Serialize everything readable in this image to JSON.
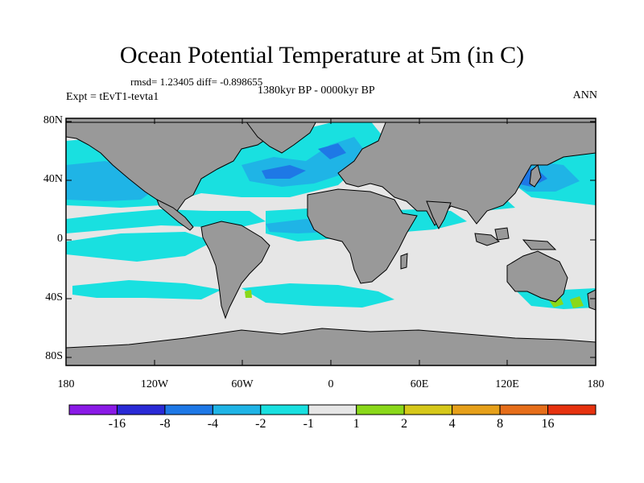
{
  "title": "Ocean Potential Temperature at 5m (in C)",
  "stats": "rmsd= 1.23405   diff= -0.898655",
  "experiment": "Expt = tEvT1-tevta1",
  "period": "1380kyr BP - 0000kyr BP",
  "season": "ANN",
  "lat_ticks": [
    "80N",
    "40N",
    "0",
    "40S",
    "80S"
  ],
  "lon_ticks": [
    "180",
    "120W",
    "60W",
    "0",
    "60E",
    "120E",
    "180"
  ],
  "colorbar": {
    "colors": [
      "#8a1ae6",
      "#2a2ad6",
      "#1e78e6",
      "#1fb4e6",
      "#19e0e0",
      "#e6e6e6",
      "#8ad81a",
      "#d6c81a",
      "#e6a01a",
      "#e66e1a",
      "#e6320f"
    ],
    "labels": [
      "-16",
      "-8",
      "-4",
      "-2",
      "-1",
      "1",
      "2",
      "4",
      "8",
      "16"
    ]
  },
  "colors": {
    "land": "#999999",
    "neutral": "#e6e6e6",
    "cyan": "#19e0e0",
    "lightblue": "#1fb4e6",
    "blue": "#1e78e6",
    "green": "#8ad81a"
  }
}
